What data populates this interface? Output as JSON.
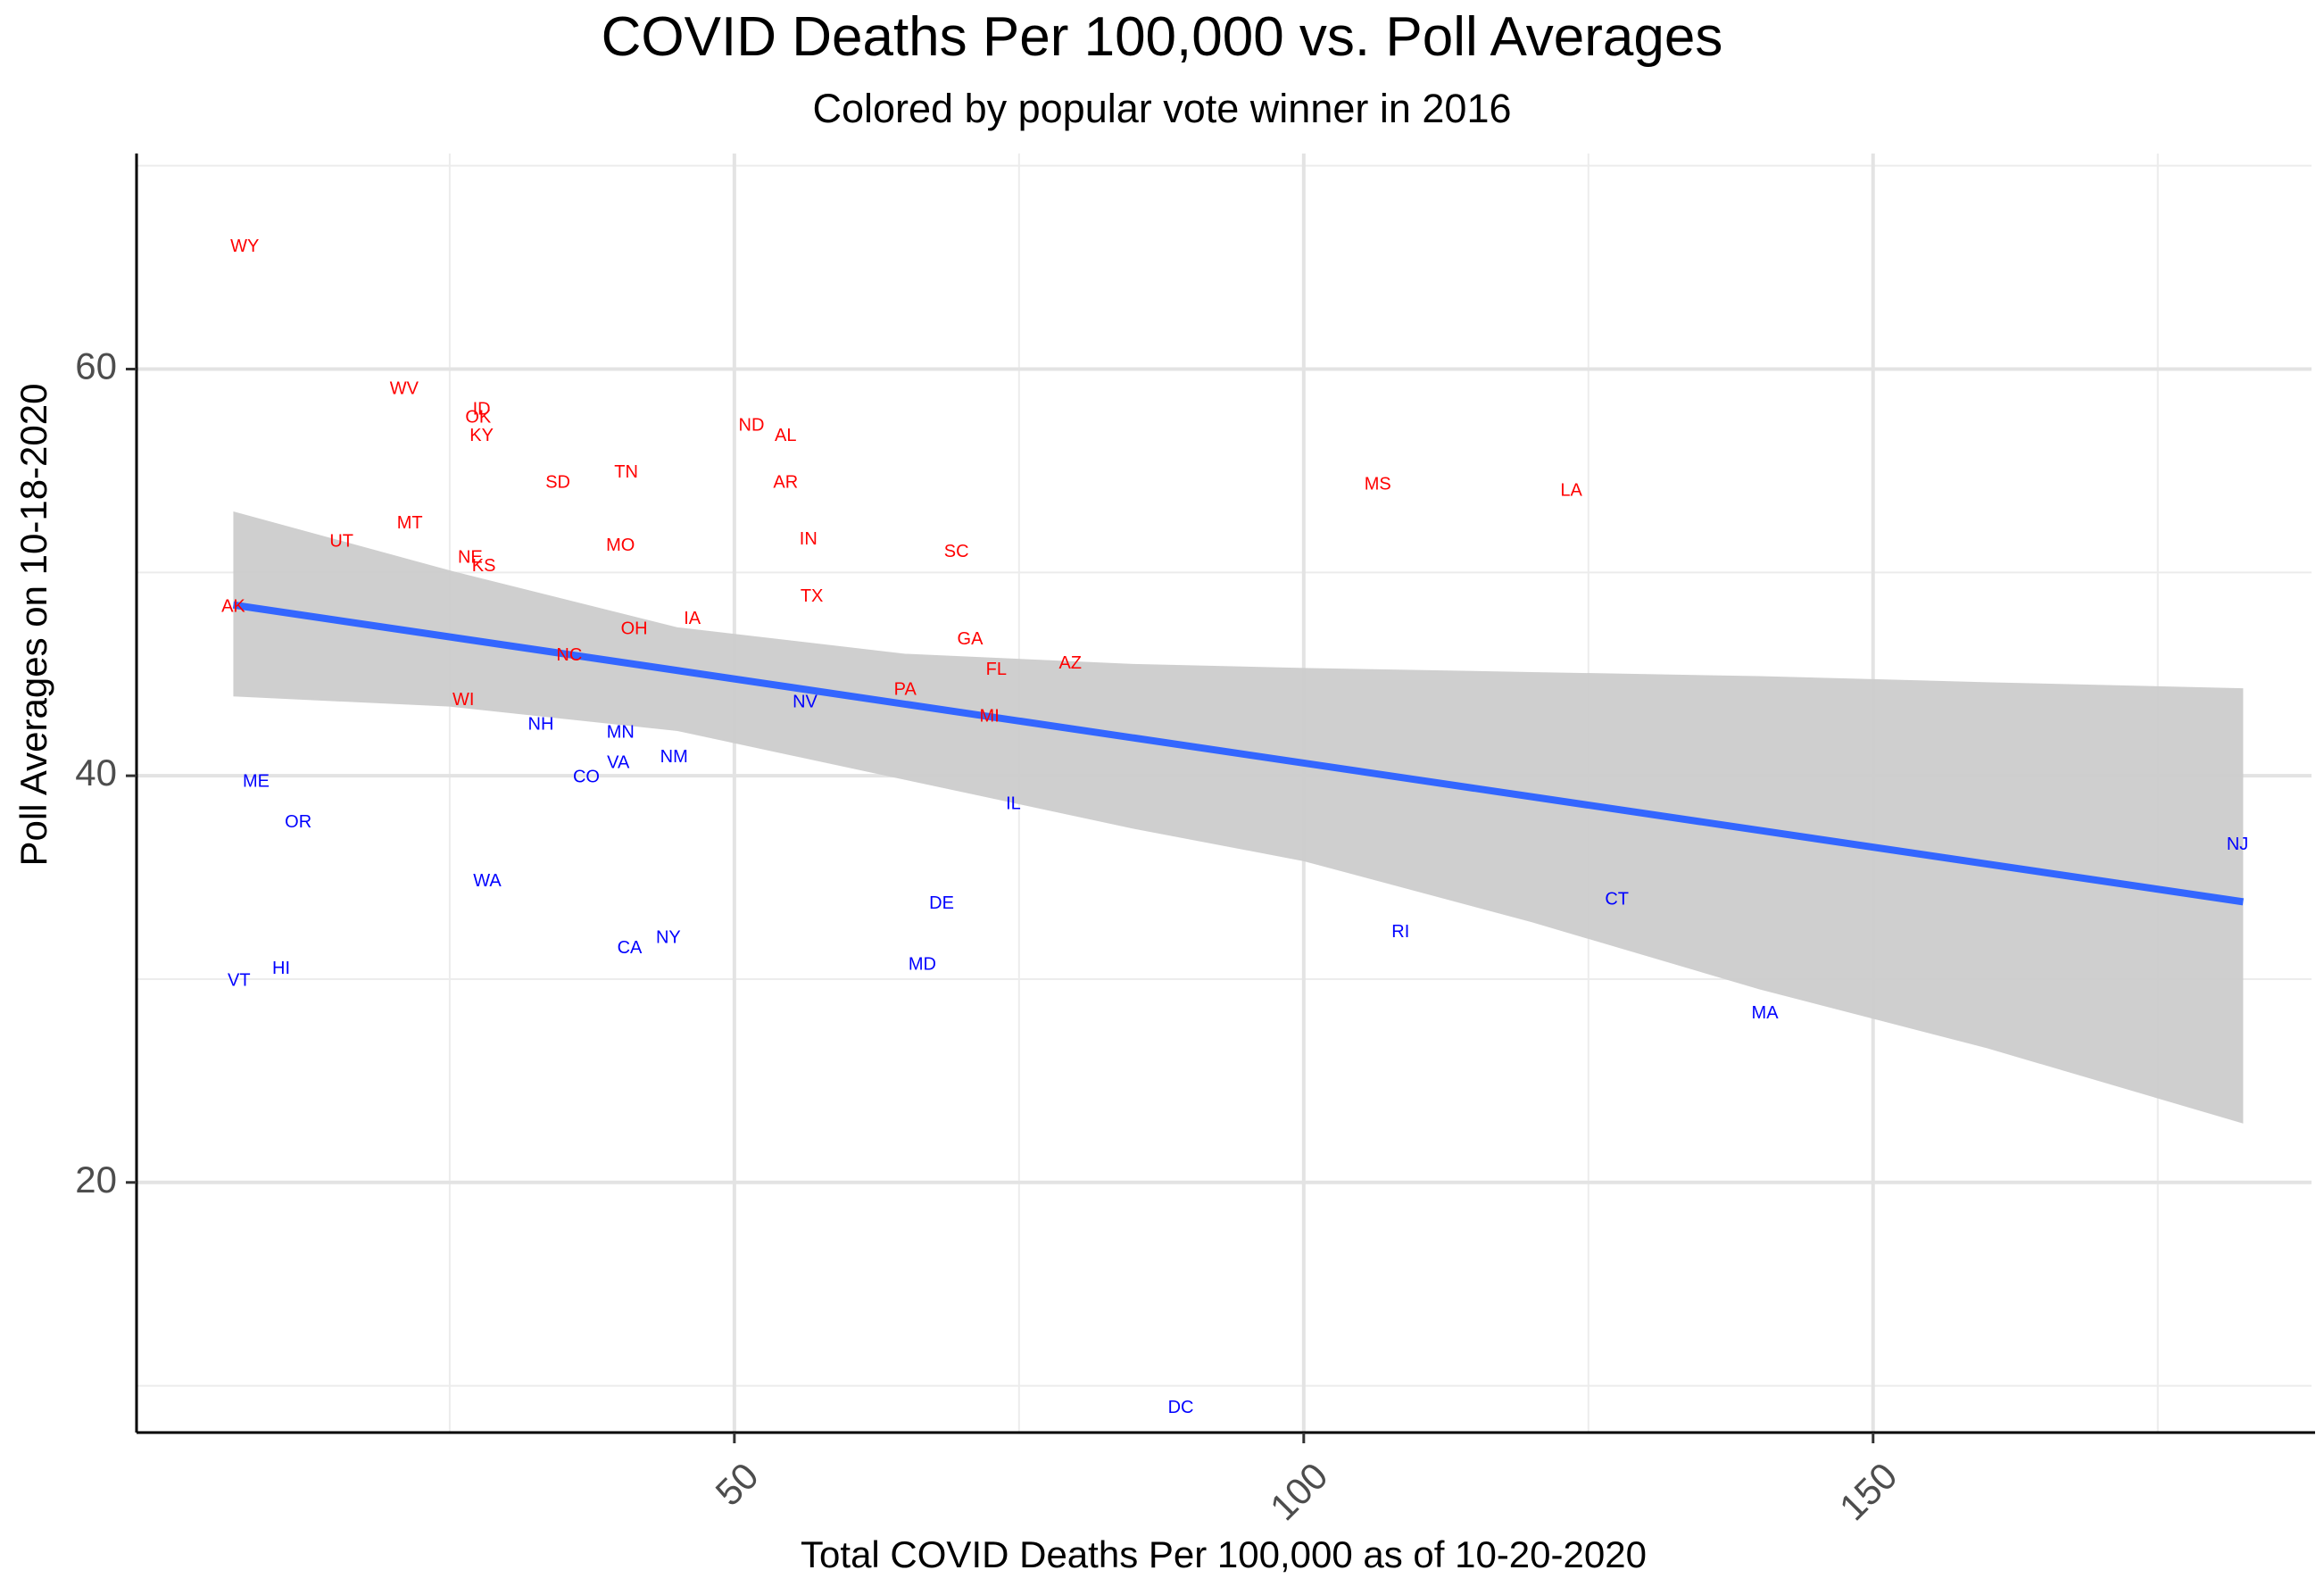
{
  "chart_data": {
    "type": "scatter",
    "title": "COVID Deaths Per 100,000 vs. Poll Averages",
    "subtitle": "Colored by popular vote winner in 2016",
    "xlabel": "Total COVID Deaths Per 100,000 as of 10-20-2020",
    "ylabel": "Poll Averages on 10-18-2020",
    "xlim": [
      -2.5,
      188.5
    ],
    "ylim": [
      7.7,
      70.6
    ],
    "x_ticks": [
      50,
      100,
      150
    ],
    "y_ticks": [
      20,
      40,
      60
    ],
    "x_tick_rotation": -45,
    "grid": true,
    "legend": "none",
    "colors": {
      "red": "#FF0000",
      "blue": "#0000FF",
      "fit_line": "#3366FF",
      "ribbon": "#CCCCCC"
    },
    "points": [
      {
        "label": "WY",
        "x": 7,
        "y": 66.0,
        "color": "red"
      },
      {
        "label": "WV",
        "x": 21,
        "y": 59.0,
        "color": "red"
      },
      {
        "label": "ID",
        "x": 27.8,
        "y": 58.0,
        "color": "red"
      },
      {
        "label": "OK",
        "x": 27.5,
        "y": 57.6,
        "color": "red"
      },
      {
        "label": "KY",
        "x": 27.8,
        "y": 56.7,
        "color": "red"
      },
      {
        "label": "ND",
        "x": 51.5,
        "y": 57.2,
        "color": "red"
      },
      {
        "label": "AL",
        "x": 54.5,
        "y": 56.7,
        "color": "red"
      },
      {
        "label": "TN",
        "x": 40.5,
        "y": 54.9,
        "color": "red"
      },
      {
        "label": "SD",
        "x": 34.5,
        "y": 54.4,
        "color": "red"
      },
      {
        "label": "AR",
        "x": 54.5,
        "y": 54.4,
        "color": "red"
      },
      {
        "label": "MS",
        "x": 106.5,
        "y": 54.3,
        "color": "red"
      },
      {
        "label": "LA",
        "x": 123.5,
        "y": 54.0,
        "color": "red"
      },
      {
        "label": "MT",
        "x": 21.5,
        "y": 52.4,
        "color": "red"
      },
      {
        "label": "UT",
        "x": 15.5,
        "y": 51.5,
        "color": "red"
      },
      {
        "label": "IN",
        "x": 56.5,
        "y": 51.6,
        "color": "red"
      },
      {
        "label": "MO",
        "x": 40,
        "y": 51.3,
        "color": "red"
      },
      {
        "label": "SC",
        "x": 69.5,
        "y": 51.0,
        "color": "red"
      },
      {
        "label": "NE",
        "x": 26.8,
        "y": 50.7,
        "color": "red"
      },
      {
        "label": "KS",
        "x": 28,
        "y": 50.3,
        "color": "red"
      },
      {
        "label": "AK",
        "x": 6,
        "y": 48.3,
        "color": "red"
      },
      {
        "label": "TX",
        "x": 56.8,
        "y": 48.8,
        "color": "red"
      },
      {
        "label": "IA",
        "x": 46.3,
        "y": 47.7,
        "color": "red"
      },
      {
        "label": "OH",
        "x": 41.2,
        "y": 47.2,
        "color": "red"
      },
      {
        "label": "GA",
        "x": 70.7,
        "y": 46.7,
        "color": "red"
      },
      {
        "label": "NC",
        "x": 35.5,
        "y": 45.9,
        "color": "red"
      },
      {
        "label": "AZ",
        "x": 79.5,
        "y": 45.5,
        "color": "red"
      },
      {
        "label": "FL",
        "x": 73,
        "y": 45.2,
        "color": "red"
      },
      {
        "label": "PA",
        "x": 65,
        "y": 44.2,
        "color": "red"
      },
      {
        "label": "WI",
        "x": 26.2,
        "y": 43.7,
        "color": "red"
      },
      {
        "label": "MI",
        "x": 72.4,
        "y": 42.9,
        "color": "red"
      },
      {
        "label": "NV",
        "x": 56.2,
        "y": 43.6,
        "color": "blue"
      },
      {
        "label": "NH",
        "x": 33,
        "y": 42.5,
        "color": "blue"
      },
      {
        "label": "MN",
        "x": 40,
        "y": 42.1,
        "color": "blue"
      },
      {
        "label": "NM",
        "x": 44.7,
        "y": 40.9,
        "color": "blue"
      },
      {
        "label": "VA",
        "x": 39.8,
        "y": 40.6,
        "color": "blue"
      },
      {
        "label": "CO",
        "x": 37,
        "y": 39.9,
        "color": "blue"
      },
      {
        "label": "ME",
        "x": 8,
        "y": 39.7,
        "color": "blue"
      },
      {
        "label": "IL",
        "x": 74.5,
        "y": 38.6,
        "color": "blue"
      },
      {
        "label": "OR",
        "x": 11.7,
        "y": 37.7,
        "color": "blue"
      },
      {
        "label": "NJ",
        "x": 182,
        "y": 36.6,
        "color": "blue"
      },
      {
        "label": "WA",
        "x": 28.3,
        "y": 34.8,
        "color": "blue"
      },
      {
        "label": "DE",
        "x": 68.2,
        "y": 33.7,
        "color": "blue"
      },
      {
        "label": "CT",
        "x": 127.5,
        "y": 33.9,
        "color": "blue"
      },
      {
        "label": "RI",
        "x": 108.5,
        "y": 32.3,
        "color": "blue"
      },
      {
        "label": "NY",
        "x": 44.2,
        "y": 32.0,
        "color": "blue"
      },
      {
        "label": "CA",
        "x": 40.8,
        "y": 31.5,
        "color": "blue"
      },
      {
        "label": "MD",
        "x": 66.5,
        "y": 30.7,
        "color": "blue"
      },
      {
        "label": "HI",
        "x": 10.2,
        "y": 30.5,
        "color": "blue"
      },
      {
        "label": "VT",
        "x": 6.5,
        "y": 29.9,
        "color": "blue"
      },
      {
        "label": "MA",
        "x": 140.5,
        "y": 28.3,
        "color": "blue"
      },
      {
        "label": "DC",
        "x": 89.2,
        "y": 8.9,
        "color": "blue"
      }
    ],
    "fit": {
      "method": "linear",
      "x": [
        6,
        182.5
      ],
      "y": [
        48.4,
        33.8
      ],
      "ribbon_x": [
        6,
        25,
        45,
        65,
        85,
        100,
        120,
        140,
        160,
        182.5
      ],
      "ribbon_lower": [
        43.9,
        43.4,
        42.2,
        39.8,
        37.4,
        35.8,
        32.8,
        29.5,
        26.6,
        22.9
      ],
      "ribbon_upper": [
        53.0,
        50.1,
        47.3,
        46.0,
        45.5,
        45.3,
        45.1,
        44.9,
        44.6,
        44.3
      ]
    }
  }
}
